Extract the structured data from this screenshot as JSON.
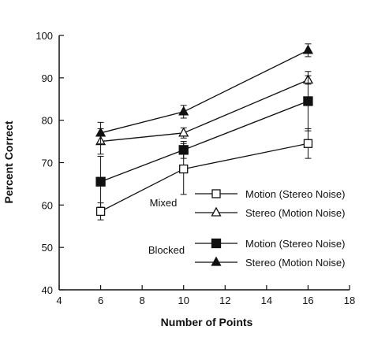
{
  "chart_data": {
    "type": "line",
    "xlabel": "Number of Points",
    "ylabel": "Percent Correct",
    "xlim": [
      4,
      18
    ],
    "ylim": [
      40,
      100
    ],
    "x_ticks": [
      "4",
      "6",
      "8",
      "10",
      "12",
      "14",
      "16",
      "18"
    ],
    "y_ticks": [
      "40",
      "50",
      "60",
      "70",
      "80",
      "90",
      "100"
    ],
    "grid": false,
    "legend_position": "lower-right",
    "legend_groups": [
      "Mixed",
      "Blocked"
    ],
    "series": [
      {
        "name": "Motion (Stereo Noise)",
        "group": "Mixed",
        "marker": "open-square",
        "x": [
          6,
          10,
          16
        ],
        "y": [
          58.5,
          68.5,
          74.5
        ],
        "error": [
          2,
          6,
          3.5
        ]
      },
      {
        "name": "Stereo (Motion Noise)",
        "group": "Mixed",
        "marker": "open-triangle",
        "x": [
          6,
          10,
          16
        ],
        "y": [
          75,
          77,
          89.5
        ],
        "error": [
          3,
          1.2,
          1
        ]
      },
      {
        "name": "Motion (Stereo Noise)",
        "group": "Blocked",
        "marker": "filled-square",
        "x": [
          6,
          10,
          16
        ],
        "y": [
          65.5,
          73,
          84.5
        ],
        "error": [
          6,
          2,
          7
        ]
      },
      {
        "name": "Stereo (Motion Noise)",
        "group": "Blocked",
        "marker": "filled-triangle",
        "x": [
          6,
          10,
          16
        ],
        "y": [
          77,
          82,
          96.5
        ],
        "error": [
          2.5,
          1.5,
          1.5
        ]
      }
    ]
  }
}
